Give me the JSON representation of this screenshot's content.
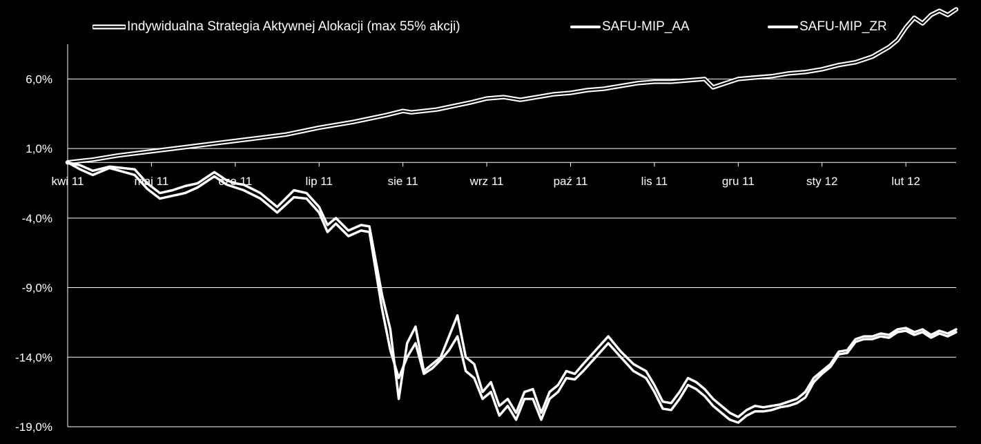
{
  "chart_data": {
    "type": "line",
    "title": "",
    "xlabel": "",
    "ylabel": "",
    "ylim": [
      -19.0,
      8.5
    ],
    "yticks": [
      6.0,
      1.0,
      -4.0,
      -9.0,
      -14.0,
      -19.0
    ],
    "ytick_labels": [
      "6,0%",
      "1,0%",
      "-4,0%",
      "-9,0%",
      "-14,0%",
      "-19,0%"
    ],
    "x_range": [
      0,
      10.6
    ],
    "xticks": [
      0,
      1,
      2,
      3,
      4,
      5,
      6,
      7,
      8,
      9,
      10
    ],
    "xtick_labels": [
      "kwi 11",
      "maj 11",
      "cze 11",
      "lip 11",
      "sie 11",
      "wrz 11",
      "paź 11",
      "lis 11",
      "gru 11",
      "sty 12",
      "lut 12"
    ],
    "grid": true,
    "legend_position": "top",
    "series": [
      {
        "name": "Indywidualna Strategia Aktywnej Alokacji (max 55% akcji)",
        "style": "double",
        "x": [
          0,
          0.3,
          0.6,
          1.0,
          1.4,
          1.8,
          2.2,
          2.6,
          3.0,
          3.4,
          3.8,
          4.0,
          4.1,
          4.4,
          4.8,
          5.0,
          5.2,
          5.4,
          5.6,
          5.8,
          6.0,
          6.2,
          6.4,
          6.6,
          6.8,
          7.0,
          7.2,
          7.4,
          7.6,
          7.7,
          7.8,
          8.0,
          8.2,
          8.4,
          8.6,
          8.8,
          9.0,
          9.2,
          9.4,
          9.6,
          9.8,
          9.9,
          10.0,
          10.1,
          10.2,
          10.3,
          10.4,
          10.5,
          10.6
        ],
        "y": [
          0.0,
          0.2,
          0.5,
          0.8,
          1.1,
          1.4,
          1.7,
          2.0,
          2.5,
          2.9,
          3.4,
          3.7,
          3.6,
          3.8,
          4.3,
          4.6,
          4.7,
          4.5,
          4.7,
          4.9,
          5.0,
          5.2,
          5.3,
          5.5,
          5.7,
          5.8,
          5.8,
          5.9,
          6.0,
          5.4,
          5.6,
          6.0,
          6.1,
          6.2,
          6.4,
          6.5,
          6.7,
          7.0,
          7.2,
          7.6,
          8.3,
          8.8,
          9.7,
          10.4,
          10.0,
          10.6,
          10.9,
          10.6,
          11.0
        ]
      },
      {
        "name": "SAFU-MIP_AA",
        "style": "solid",
        "x": [
          0,
          0.15,
          0.3,
          0.5,
          0.8,
          0.95,
          1.1,
          1.25,
          1.4,
          1.55,
          1.75,
          1.9,
          2.0,
          2.1,
          2.3,
          2.5,
          2.7,
          2.85,
          3.0,
          3.1,
          3.2,
          3.35,
          3.5,
          3.6,
          3.75,
          3.85,
          3.95,
          4.05,
          4.15,
          4.25,
          4.35,
          4.45,
          4.55,
          4.65,
          4.75,
          4.85,
          4.95,
          5.05,
          5.15,
          5.25,
          5.35,
          5.45,
          5.55,
          5.65,
          5.75,
          5.85,
          5.95,
          6.05,
          6.15,
          6.3,
          6.45,
          6.6,
          6.75,
          6.9,
          7.0,
          7.1,
          7.2,
          7.3,
          7.4,
          7.5,
          7.6,
          7.7,
          7.8,
          7.9,
          8.0,
          8.1,
          8.2,
          8.3,
          8.4,
          8.5,
          8.6,
          8.7,
          8.8,
          8.9,
          9.0,
          9.1,
          9.2,
          9.3,
          9.4,
          9.5,
          9.6,
          9.7,
          9.8,
          9.9,
          10.0,
          10.1,
          10.2,
          10.3,
          10.4,
          10.5,
          10.6
        ],
        "y": [
          0.0,
          -0.2,
          -0.6,
          -0.3,
          -0.5,
          -1.5,
          -2.2,
          -2.0,
          -1.7,
          -1.5,
          -0.7,
          -1.3,
          -1.5,
          -1.6,
          -2.2,
          -3.2,
          -2.0,
          -2.2,
          -3.2,
          -4.5,
          -4.0,
          -4.9,
          -4.5,
          -4.6,
          -9.5,
          -12.0,
          -17.0,
          -13.0,
          -11.8,
          -15.0,
          -14.5,
          -14.0,
          -12.5,
          -11.0,
          -14.0,
          -14.5,
          -16.5,
          -15.8,
          -17.5,
          -17.0,
          -18.0,
          -16.5,
          -16.3,
          -18.0,
          -16.5,
          -16.0,
          -15.0,
          -15.2,
          -14.5,
          -13.5,
          -12.5,
          -13.6,
          -14.5,
          -15.0,
          -16.0,
          -17.2,
          -17.3,
          -16.5,
          -15.5,
          -15.8,
          -16.3,
          -17.0,
          -17.5,
          -18.0,
          -18.3,
          -17.8,
          -17.5,
          -17.6,
          -17.5,
          -17.4,
          -17.2,
          -17.0,
          -16.5,
          -15.5,
          -15.0,
          -14.5,
          -13.6,
          -13.5,
          -12.7,
          -12.5,
          -12.5,
          -12.3,
          -12.4,
          -12.0,
          -11.9,
          -12.2,
          -12.0,
          -12.4,
          -12.1,
          -12.3,
          -12.0
        ]
      },
      {
        "name": "SAFU-MIP_ZR",
        "style": "solid",
        "x": [
          0,
          0.15,
          0.3,
          0.5,
          0.8,
          0.95,
          1.1,
          1.25,
          1.4,
          1.55,
          1.75,
          1.9,
          2.0,
          2.1,
          2.3,
          2.5,
          2.7,
          2.85,
          3.0,
          3.1,
          3.2,
          3.35,
          3.5,
          3.6,
          3.75,
          3.85,
          3.95,
          4.05,
          4.15,
          4.25,
          4.35,
          4.45,
          4.55,
          4.65,
          4.75,
          4.85,
          4.95,
          5.05,
          5.15,
          5.25,
          5.35,
          5.45,
          5.55,
          5.65,
          5.75,
          5.85,
          5.95,
          6.05,
          6.15,
          6.3,
          6.45,
          6.6,
          6.75,
          6.9,
          7.0,
          7.1,
          7.2,
          7.3,
          7.4,
          7.5,
          7.6,
          7.7,
          7.8,
          7.9,
          8.0,
          8.1,
          8.2,
          8.3,
          8.4,
          8.5,
          8.6,
          8.7,
          8.8,
          8.9,
          9.0,
          9.1,
          9.2,
          9.3,
          9.4,
          9.5,
          9.6,
          9.7,
          9.8,
          9.9,
          10.0,
          10.1,
          10.2,
          10.3,
          10.4,
          10.5,
          10.6
        ],
        "y": [
          0.0,
          -0.5,
          -0.9,
          -0.4,
          -0.9,
          -1.9,
          -2.6,
          -2.4,
          -2.2,
          -1.8,
          -1.0,
          -1.6,
          -1.8,
          -2.0,
          -2.6,
          -3.6,
          -2.5,
          -2.6,
          -3.6,
          -5.0,
          -4.4,
          -5.3,
          -4.9,
          -5.0,
          -10.5,
          -13.5,
          -15.5,
          -14.0,
          -13.0,
          -15.2,
          -14.8,
          -14.2,
          -13.5,
          -12.5,
          -15.0,
          -15.5,
          -17.0,
          -16.5,
          -18.2,
          -17.5,
          -18.5,
          -17.0,
          -17.0,
          -18.5,
          -17.0,
          -16.5,
          -15.5,
          -15.6,
          -15.0,
          -14.0,
          -13.0,
          -14.0,
          -15.0,
          -15.5,
          -16.5,
          -17.7,
          -17.8,
          -17.0,
          -16.0,
          -16.3,
          -16.8,
          -17.5,
          -18.0,
          -18.5,
          -18.7,
          -18.2,
          -17.9,
          -17.9,
          -17.8,
          -17.6,
          -17.5,
          -17.3,
          -16.9,
          -15.8,
          -15.2,
          -14.7,
          -13.8,
          -13.7,
          -12.9,
          -12.7,
          -12.7,
          -12.5,
          -12.6,
          -12.2,
          -12.1,
          -12.4,
          -12.2,
          -12.6,
          -12.3,
          -12.5,
          -12.2
        ]
      }
    ]
  }
}
